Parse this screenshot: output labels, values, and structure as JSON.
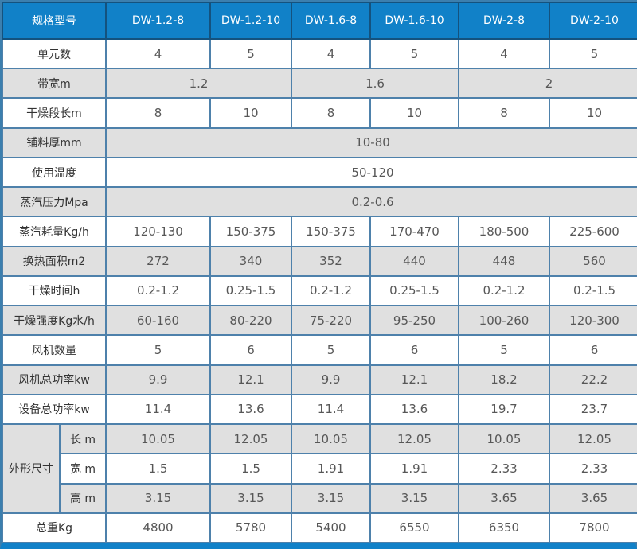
{
  "table": {
    "header": {
      "label": "规格型号",
      "models": [
        "DW-1.2-8",
        "DW-1.2-10",
        "DW-1.6-8",
        "DW-1.6-10",
        "DW-2-8",
        "DW-2-10"
      ]
    },
    "rows": [
      {
        "label": "单元数",
        "span": 1,
        "values": [
          "4",
          "5",
          "4",
          "5",
          "4",
          "5"
        ]
      },
      {
        "label": "带宽m",
        "span": 2,
        "values": [
          "1.2",
          "1.6",
          "2"
        ]
      },
      {
        "label": "干燥段长m",
        "span": 1,
        "values": [
          "8",
          "10",
          "8",
          "10",
          "8",
          "10"
        ]
      },
      {
        "label": "铺料厚mm",
        "span": 6,
        "values": [
          "10-80"
        ]
      },
      {
        "label": "使用温度",
        "span": 6,
        "values": [
          "50-120"
        ]
      },
      {
        "label": "蒸汽压力Mpa",
        "span": 6,
        "values": [
          "0.2-0.6"
        ]
      },
      {
        "label": "蒸汽耗量Kg/h",
        "span": 1,
        "values": [
          "120-130",
          "150-375",
          "150-375",
          "170-470",
          "180-500",
          "225-600"
        ]
      },
      {
        "label": "换热面积m2",
        "span": 1,
        "values": [
          "272",
          "340",
          "352",
          "440",
          "448",
          "560"
        ]
      },
      {
        "label": "干燥时间h",
        "span": 1,
        "values": [
          "0.2-1.2",
          "0.25-1.5",
          "0.2-1.2",
          "0.25-1.5",
          "0.2-1.2",
          "0.2-1.5"
        ]
      },
      {
        "label": "干燥强度Kg水/h",
        "span": 1,
        "values": [
          "60-160",
          "80-220",
          "75-220",
          "95-250",
          "100-260",
          "120-300"
        ]
      },
      {
        "label": "风机数量",
        "span": 1,
        "values": [
          "5",
          "6",
          "5",
          "6",
          "5",
          "6"
        ]
      },
      {
        "label": "风机总功率kw",
        "span": 1,
        "values": [
          "9.9",
          "12.1",
          "9.9",
          "12.1",
          "18.2",
          "22.2"
        ]
      },
      {
        "label": "设备总功率kw",
        "span": 1,
        "values": [
          "11.4",
          "13.6",
          "11.4",
          "13.6",
          "19.7",
          "23.7"
        ]
      }
    ],
    "dimensions": {
      "group_label": "外形尺寸",
      "rows": [
        {
          "label": "长 m",
          "values": [
            "10.05",
            "12.05",
            "10.05",
            "12.05",
            "10.05",
            "12.05"
          ]
        },
        {
          "label": "宽 m",
          "values": [
            "1.5",
            "1.5",
            "1.91",
            "1.91",
            "2.33",
            "2.33"
          ]
        },
        {
          "label": "高 m",
          "values": [
            "3.15",
            "3.15",
            "3.15",
            "3.15",
            "3.65",
            "3.65"
          ]
        }
      ]
    },
    "footer_row": {
      "label": "总重Kg",
      "values": [
        "4800",
        "5780",
        "5400",
        "6550",
        "6350",
        "7800"
      ]
    },
    "colors": {
      "accent": "#1181c8",
      "header_border": "#14527e",
      "cell_border": "#4e81ab",
      "outer_border": "#3c7fae",
      "gray_row": "#e0e0e0",
      "label_text": "#333333",
      "value_text": "#575757",
      "header_text": "#ffffff"
    }
  }
}
